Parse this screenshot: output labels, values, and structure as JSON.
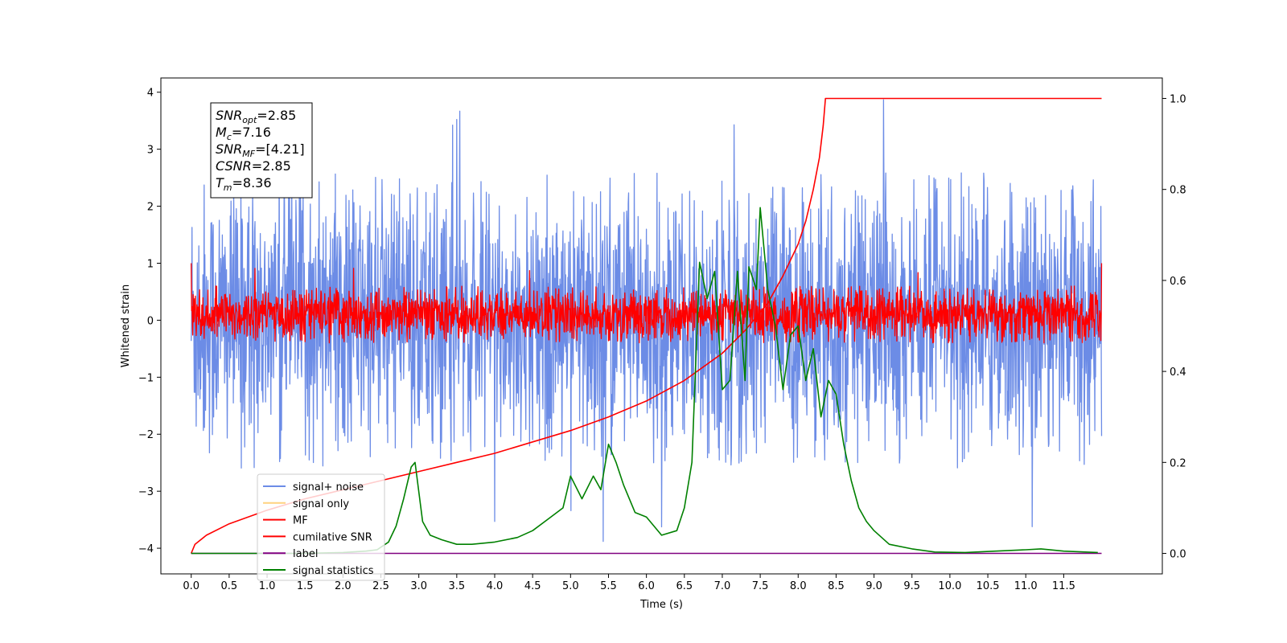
{
  "chart_data": {
    "type": "line",
    "xlabel": "Time (s)",
    "ylabel": "Whitened strain",
    "xlim": [
      -0.4,
      12.8
    ],
    "ylim": [
      -4.45,
      4.25
    ],
    "y2lim": [
      -0.045,
      1.045
    ],
    "x_ticks": [
      "0.0",
      "0.5",
      "1.0",
      "1.5",
      "2.0",
      "2.5",
      "3.0",
      "3.5",
      "4.0",
      "4.5",
      "5.0",
      "5.5",
      "6.0",
      "6.5",
      "7.0",
      "7.5",
      "8.0",
      "8.5",
      "9.0",
      "9.5",
      "10.0",
      "10.5",
      "11.0",
      "11.5"
    ],
    "y_ticks": [
      "4",
      "3",
      "2",
      "1",
      "0",
      "−1",
      "−2",
      "−3",
      "−4"
    ],
    "y2_ticks": [
      "1.0",
      "0.8",
      "0.6",
      "0.4",
      "0.2",
      "0.0"
    ],
    "legend_position": "lower-left",
    "annotation": [
      {
        "var": "SNR",
        "sub": "opt",
        "value": "=2.85"
      },
      {
        "var": "M",
        "sub": "c",
        "value": "=7.16"
      },
      {
        "var": "SNR",
        "sub": "MF",
        "value": "=[4.21]"
      },
      {
        "var": "CSNR",
        "sub": "",
        "value": "=2.85"
      },
      {
        "var": "T",
        "sub": "m",
        "value": "=8.36"
      }
    ],
    "series": [
      {
        "name": "signal+ noise",
        "color": "#6c8ce6",
        "axis": "left",
        "kind": "noise",
        "x_range": [
          0,
          12
        ],
        "envelope": [
          -2.6,
          2.6
        ],
        "peaks": [
          3.88,
          -4.15
        ]
      },
      {
        "name": "signal only",
        "color": "#ffd27f",
        "axis": "left",
        "kind": "flat",
        "x_range": [
          0,
          12
        ]
      },
      {
        "name": "MF",
        "color": "#ff0000",
        "axis": "left",
        "kind": "noise",
        "x_range": [
          0,
          12
        ],
        "envelope": [
          -0.4,
          0.6
        ],
        "peaks": [
          1.0,
          -0.4
        ]
      },
      {
        "name": "cumilative SNR",
        "color": "#ff0000",
        "axis": "right",
        "x": [
          0.0,
          0.05,
          0.2,
          0.5,
          1.0,
          1.5,
          2.0,
          2.5,
          3.0,
          3.5,
          4.0,
          4.5,
          5.0,
          5.5,
          6.0,
          6.5,
          7.0,
          7.3,
          7.6,
          7.8,
          8.0,
          8.1,
          8.2,
          8.28,
          8.33,
          8.36,
          12.0
        ],
        "y": [
          0.0,
          0.02,
          0.04,
          0.065,
          0.095,
          0.12,
          0.14,
          0.16,
          0.18,
          0.2,
          0.22,
          0.245,
          0.27,
          0.3,
          0.335,
          0.38,
          0.44,
          0.49,
          0.55,
          0.61,
          0.68,
          0.73,
          0.8,
          0.87,
          0.94,
          1.0,
          1.0
        ]
      },
      {
        "name": "label",
        "color": "#800080",
        "axis": "right",
        "x": [
          0,
          12
        ],
        "y": [
          0.0,
          0.0
        ]
      },
      {
        "name": "signal statistics",
        "color": "#008000",
        "axis": "right",
        "x": [
          0.0,
          0.5,
          1.0,
          1.5,
          2.0,
          2.3,
          2.45,
          2.6,
          2.7,
          2.8,
          2.9,
          2.95,
          3.05,
          3.15,
          3.3,
          3.5,
          3.7,
          4.0,
          4.3,
          4.5,
          4.7,
          4.9,
          5.0,
          5.15,
          5.3,
          5.4,
          5.5,
          5.6,
          5.7,
          5.85,
          6.0,
          6.2,
          6.4,
          6.5,
          6.6,
          6.7,
          6.8,
          6.9,
          7.0,
          7.1,
          7.2,
          7.3,
          7.35,
          7.45,
          7.5,
          7.6,
          7.7,
          7.8,
          7.9,
          8.0,
          8.1,
          8.2,
          8.3,
          8.4,
          8.5,
          8.6,
          8.7,
          8.8,
          8.9,
          9.0,
          9.2,
          9.5,
          9.8,
          10.2,
          10.6,
          11.0,
          11.2,
          11.5,
          11.95
        ],
        "y": [
          0.0,
          0.0,
          0.0,
          0.0,
          0.002,
          0.005,
          0.008,
          0.025,
          0.06,
          0.12,
          0.19,
          0.2,
          0.07,
          0.04,
          0.03,
          0.02,
          0.02,
          0.025,
          0.035,
          0.05,
          0.075,
          0.1,
          0.17,
          0.12,
          0.17,
          0.14,
          0.24,
          0.2,
          0.15,
          0.09,
          0.08,
          0.04,
          0.05,
          0.1,
          0.2,
          0.64,
          0.56,
          0.62,
          0.36,
          0.38,
          0.62,
          0.38,
          0.63,
          0.58,
          0.76,
          0.58,
          0.5,
          0.36,
          0.48,
          0.5,
          0.38,
          0.45,
          0.3,
          0.38,
          0.35,
          0.24,
          0.16,
          0.1,
          0.07,
          0.05,
          0.02,
          0.01,
          0.003,
          0.002,
          0.005,
          0.008,
          0.01,
          0.005,
          0.002
        ]
      }
    ]
  }
}
